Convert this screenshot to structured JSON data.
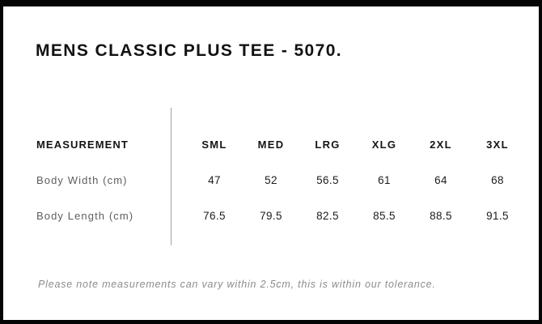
{
  "page_title": "MENS CLASSIC PLUS TEE - 5070.",
  "size_chart": {
    "measurement_header": "MEASUREMENT",
    "sizes": [
      "SML",
      "MED",
      "LRG",
      "XLG",
      "2XL",
      "3XL"
    ],
    "rows": [
      {
        "label": "Body Width (cm)",
        "values": [
          "47",
          "52",
          "56.5",
          "61",
          "64",
          "68"
        ]
      },
      {
        "label": "Body Length (cm)",
        "values": [
          "76.5",
          "79.5",
          "82.5",
          "85.5",
          "88.5",
          "91.5"
        ]
      }
    ]
  },
  "note": "Please note measurements can vary within 2.5cm, this is within our tolerance.",
  "colors": {
    "frame_border": "#050505",
    "heading_text": "#121212",
    "row_label_gray": "#5e5e5e",
    "note_gray": "#8c8c8c",
    "divider_gray": "#a3a3a3",
    "background": "#ffffff"
  },
  "chart_data": {
    "type": "table",
    "title": "MENS CLASSIC PLUS TEE - 5070.",
    "columns": [
      "MEASUREMENT",
      "SML",
      "MED",
      "LRG",
      "XLG",
      "2XL",
      "3XL"
    ],
    "rows": [
      [
        "Body Width (cm)",
        47,
        52,
        56.5,
        61,
        64,
        68
      ],
      [
        "Body Length (cm)",
        76.5,
        79.5,
        82.5,
        85.5,
        88.5,
        91.5
      ]
    ],
    "footnote": "Please note measurements can vary within 2.5cm, this is within our tolerance.",
    "layout": "measurement labels in left column separated from size columns by vertical rule"
  }
}
